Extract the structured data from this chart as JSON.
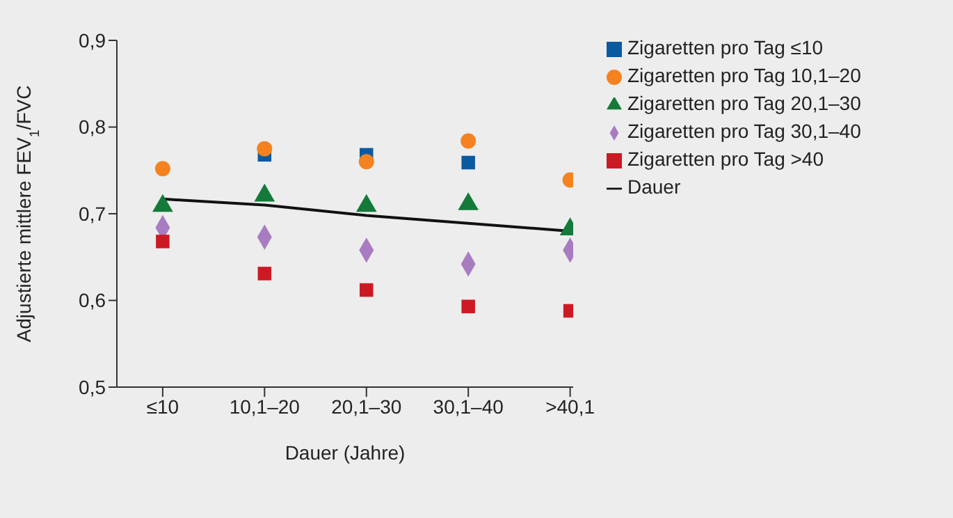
{
  "chart_data": {
    "type": "scatter",
    "ylabel": "Adjustierte mittlere FEV$_{1}$/FVC",
    "xlabel": "Dauer (Jahre)",
    "categories": [
      "≤10",
      "10,1–20",
      "20,1–30",
      "30,1–40",
      ">40,1"
    ],
    "ylim": [
      0.5,
      0.9
    ],
    "yticks": [
      {
        "value": 0.5,
        "label": "0,5"
      },
      {
        "value": 0.6,
        "label": "0,6"
      },
      {
        "value": 0.7,
        "label": "0,7"
      },
      {
        "value": 0.8,
        "label": "0,8"
      },
      {
        "value": 0.9,
        "label": "0,9"
      }
    ],
    "series": [
      {
        "name": "Zigaretten pro Tag ≤10",
        "color": "#0b5aa0",
        "marker": "square",
        "values": [
          null,
          0.768,
          0.768,
          0.759,
          null
        ]
      },
      {
        "name": "Zigaretten pro Tag 10,1–20",
        "color": "#f5821f",
        "marker": "circle",
        "values": [
          0.752,
          0.775,
          0.76,
          0.784,
          0.739
        ]
      },
      {
        "name": "Zigaretten pro Tag 20,1–30",
        "color": "#137a3a",
        "marker": "triangle",
        "values": [
          0.709,
          0.721,
          0.709,
          0.711,
          0.682
        ]
      },
      {
        "name": "Zigaretten pro Tag 30,1–40",
        "color": "#a97bc0",
        "marker": "diamond",
        "values": [
          0.684,
          0.673,
          0.658,
          0.642,
          0.658
        ]
      },
      {
        "name": "Zigaretten pro Tag >40",
        "color": "#cc1a24",
        "marker": "square",
        "values": [
          0.668,
          0.631,
          0.612,
          0.593,
          0.588
        ]
      },
      {
        "name": "Dauer",
        "type": "line",
        "color": "#111111",
        "marker": "none",
        "values": [
          0.717,
          0.71,
          0.698,
          0.689,
          0.68
        ]
      }
    ],
    "legend": "top right",
    "grid": false
  }
}
